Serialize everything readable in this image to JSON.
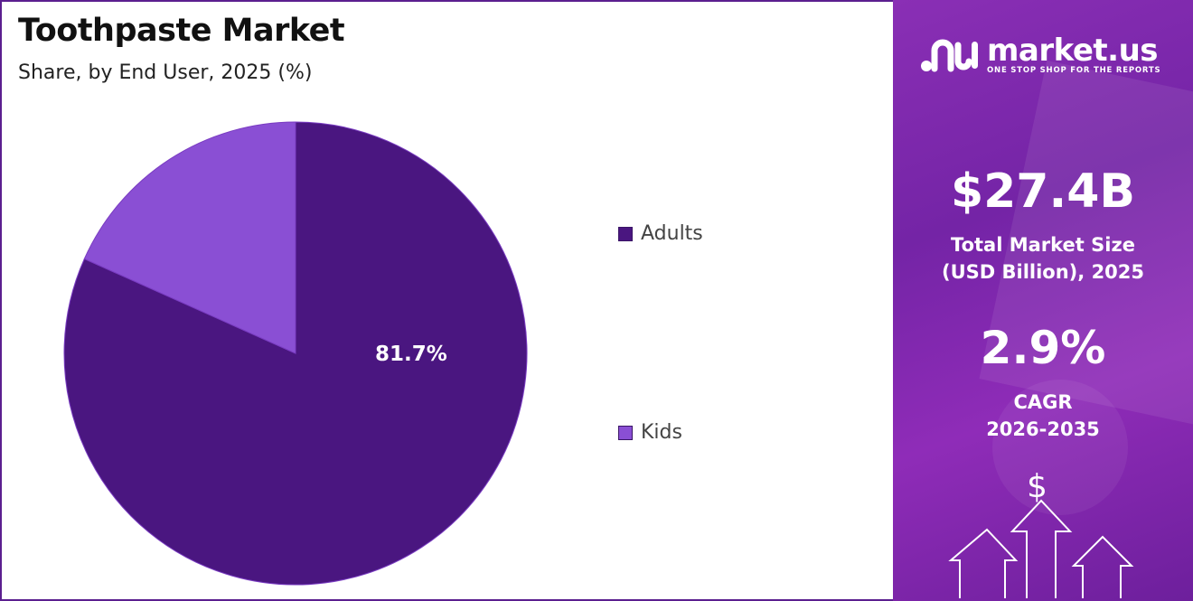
{
  "header": {
    "title": "Toothpaste Market",
    "subtitle": "Share, by End User, 2025 (%)"
  },
  "chart_data": {
    "type": "pie",
    "title": "Toothpaste Market",
    "subtitle": "Share, by End User, 2025 (%)",
    "categories": [
      "Adults",
      "Kids"
    ],
    "values": [
      81.7,
      18.3
    ],
    "colors": [
      "#4a1680",
      "#8a4fd4"
    ],
    "data_labels": [
      "81.7%",
      ""
    ],
    "legend_position": "right"
  },
  "sidebar": {
    "brand_name": "market.us",
    "brand_tagline": "ONE STOP SHOP FOR THE REPORTS",
    "market_size_value": "$27.4B",
    "market_size_label_line1": "Total Market Size",
    "market_size_label_line2": "(USD Billion), 2025",
    "cagr_value": "2.9%",
    "cagr_label_line1": "CAGR",
    "cagr_label_line2": "2026-2035",
    "dollar_symbol": "$",
    "icons": [
      "brand-logo-icon",
      "dollar-icon",
      "arrow-up-icon"
    ]
  }
}
